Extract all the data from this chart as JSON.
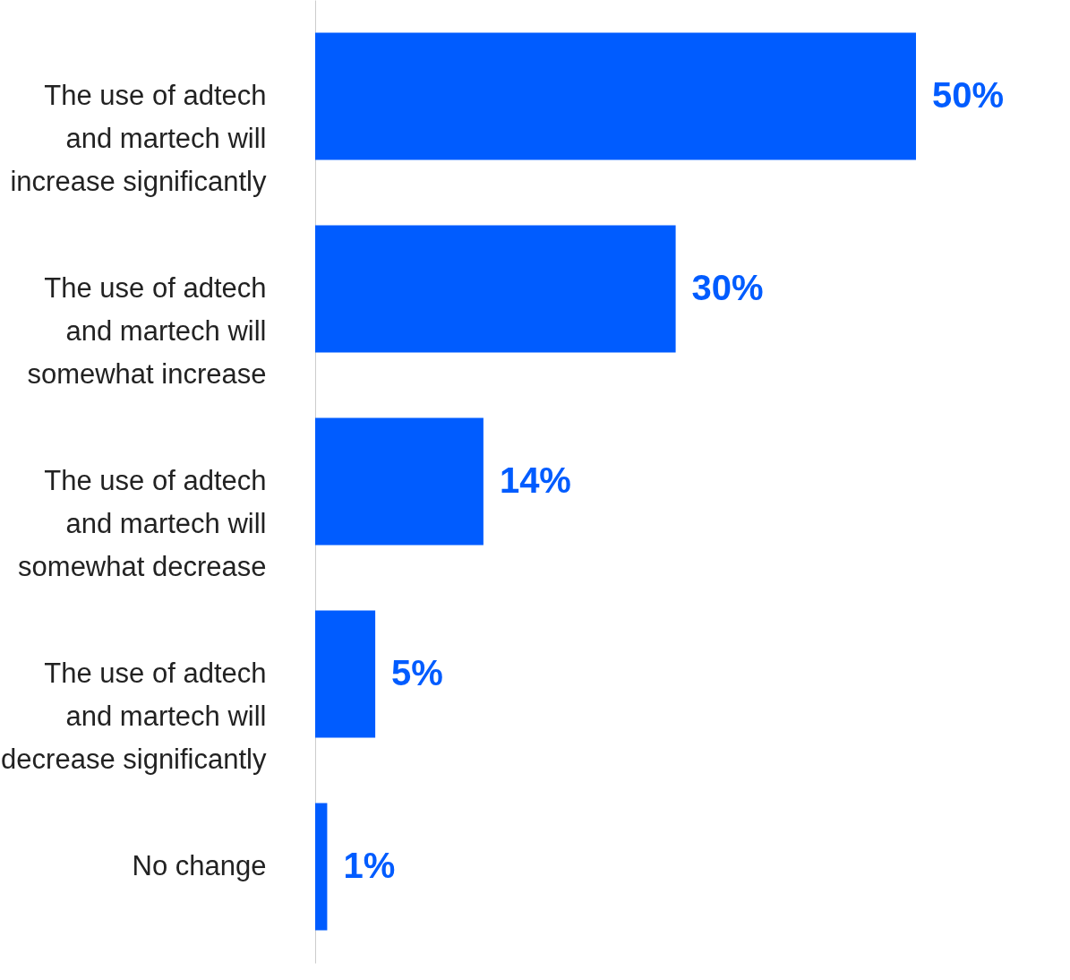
{
  "chart_data": {
    "type": "bar",
    "orientation": "horizontal",
    "categories": [
      "The use of adtech and martech will increase significantly",
      "The use of adtech and martech will somewhat increase",
      "The use of adtech and martech will somewhat decrease",
      "The use of adtech and martech will decrease significantly",
      "No change"
    ],
    "values": [
      50,
      30,
      14,
      5,
      1
    ],
    "value_labels": [
      "50%",
      "30%",
      "14%",
      "5%",
      "1%"
    ],
    "color": "#005cff",
    "tick_labels": "y"
  }
}
